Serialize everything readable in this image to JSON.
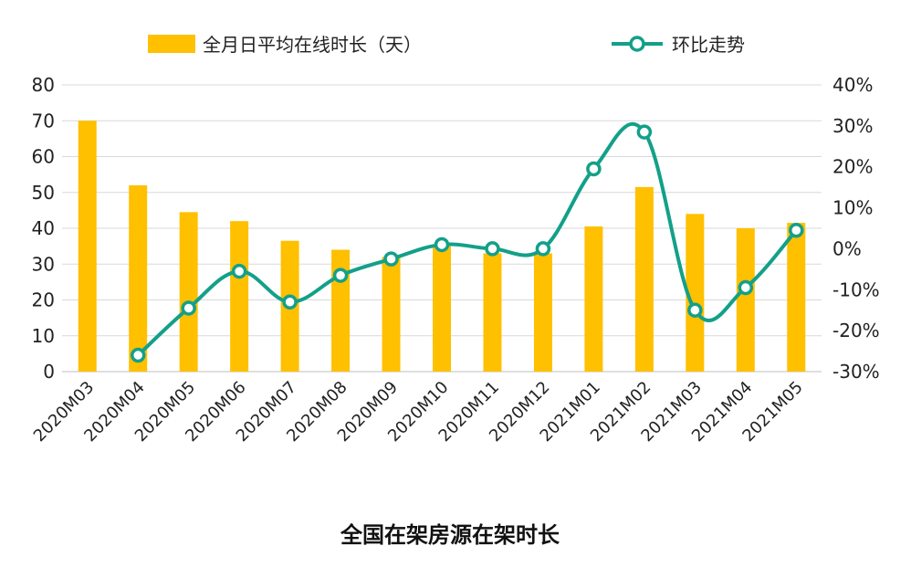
{
  "chart_data": {
    "type": "bar",
    "title": "全国在架房源在架时长",
    "categories": [
      "2020M03",
      "2020M04",
      "2020M05",
      "2020M06",
      "2020M07",
      "2020M08",
      "2020M09",
      "2020M10",
      "2020M11",
      "2020M12",
      "2021M01",
      "2021M02",
      "2021M03",
      "2021M04",
      "2021M05"
    ],
    "series": [
      {
        "name": "全月日平均在线时长（天）",
        "type": "bar",
        "axis": "left",
        "color": "#FFC000",
        "values": [
          70,
          52,
          44.5,
          42,
          36.5,
          34,
          32,
          35,
          33,
          33,
          40.5,
          51.5,
          44,
          40,
          41.5
        ]
      },
      {
        "name": "环比走势",
        "type": "line",
        "axis": "right",
        "color": "#13A089",
        "values": [
          null,
          -26,
          -14.5,
          -5.5,
          -13,
          -6.5,
          -2.5,
          1,
          0,
          0,
          19.5,
          28.5,
          -15,
          -9.5,
          4.5
        ]
      }
    ],
    "y_left": {
      "ylim": [
        0,
        80
      ],
      "ticks": [
        "0",
        "10",
        "20",
        "30",
        "40",
        "50",
        "60",
        "70",
        "80"
      ]
    },
    "y_right": {
      "ylim": [
        -30,
        40
      ],
      "ticks": [
        "-30%",
        "-20%",
        "-10%",
        "0%",
        "10%",
        "20%",
        "30%",
        "40%"
      ]
    },
    "grid": true,
    "legend": "top"
  }
}
